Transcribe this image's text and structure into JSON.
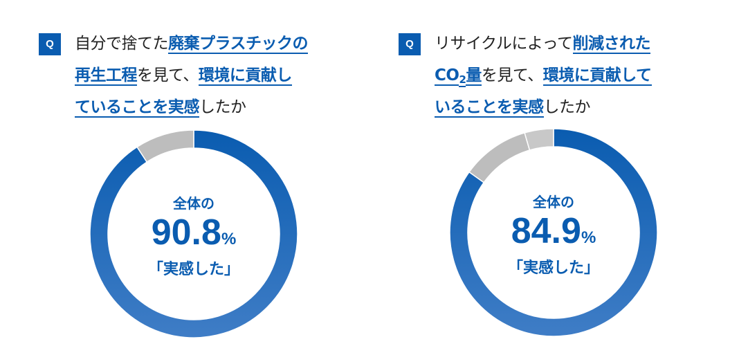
{
  "colors": {
    "accent": "#0a5cb0",
    "gray": "#bdbdbd"
  },
  "panels": [
    {
      "q_label": "Q",
      "question_lines": [
        [
          {
            "t": "自分で捨てた",
            "em": false
          },
          {
            "t": "廃棄プラスチックの",
            "em": true
          }
        ],
        [
          {
            "t": "再生工程",
            "em": true
          },
          {
            "t": "を見て、",
            "em": false
          },
          {
            "t": "環境に貢献し",
            "em": true
          }
        ],
        [
          {
            "t": "ていることを実感",
            "em": true
          },
          {
            "t": "したか",
            "em": false
          }
        ]
      ],
      "center_top": "全体の",
      "center_value": "90.8",
      "center_unit": "%",
      "center_bottom": "「実感した」"
    },
    {
      "q_label": "Q",
      "question_lines": [
        [
          {
            "t": "リサイクルによって",
            "em": false
          },
          {
            "t": "削減された",
            "em": true
          }
        ],
        [
          {
            "t": "CO",
            "em": true
          },
          {
            "t": "2",
            "em": true,
            "sub": true
          },
          {
            "t": "量",
            "em": true
          },
          {
            "t": "を見て、",
            "em": false
          },
          {
            "t": "環境に貢献して",
            "em": true
          }
        ],
        [
          {
            "t": "いることを実感",
            "em": true
          },
          {
            "t": "したか",
            "em": false
          }
        ]
      ],
      "center_top": "全体の",
      "center_value": "84.9",
      "center_unit": "%",
      "center_bottom": "「実感した」"
    }
  ],
  "chart_data": [
    {
      "type": "pie",
      "segments": [
        {
          "value": 90.8,
          "color": "#0a5cb0"
        },
        {
          "value": 9.2,
          "color": "#bdbdbd"
        }
      ]
    },
    {
      "type": "pie",
      "segments": [
        {
          "value": 84.9,
          "color": "#0a5cb0"
        },
        {
          "value": 10.6,
          "color": "#bdbdbd"
        },
        {
          "value": 4.5,
          "color": "#c8c8c8"
        }
      ]
    }
  ]
}
